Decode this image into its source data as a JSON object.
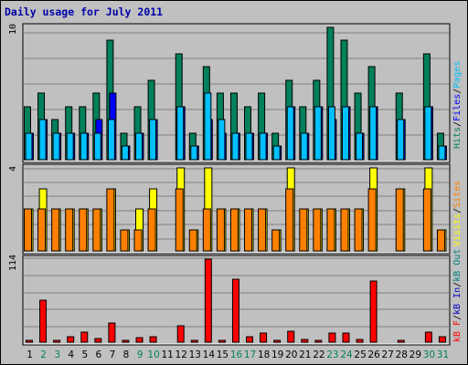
{
  "title": "Daily usage for July 2011",
  "colors": {
    "background": "#c0c0c0",
    "title": "#0000aa",
    "hits": "#00805b",
    "files": "#0000ff",
    "pages": "#00c0ff",
    "visits": "#ffff00",
    "sites": "#ff8000",
    "kb_in": "#008080",
    "kb_out": "#0000c0",
    "kb_f": "#ff0000"
  },
  "chart_data": [
    {
      "type": "bar",
      "title": "Daily usage for July 2011",
      "panel": "hits-files-pages",
      "ymax_label": "10",
      "ylim": [
        0,
        10
      ],
      "categories": [
        "1",
        "2",
        "3",
        "4",
        "5",
        "6",
        "7",
        "8",
        "9",
        "10",
        "11",
        "12",
        "13",
        "14",
        "15",
        "16",
        "17",
        "18",
        "19",
        "20",
        "21",
        "22",
        "23",
        "24",
        "25",
        "26",
        "27",
        "28",
        "29",
        "30",
        "31"
      ],
      "series": [
        {
          "name": "Hits",
          "values": [
            4,
            5,
            3,
            4,
            4,
            5,
            9,
            2,
            4,
            6,
            0,
            8,
            2,
            7,
            5,
            5,
            4,
            5,
            2,
            6,
            4,
            6,
            10,
            9,
            5,
            7,
            0,
            5,
            0,
            8,
            2
          ]
        },
        {
          "name": "Files",
          "values": [
            2,
            3,
            2,
            2,
            2,
            3,
            5,
            1,
            2,
            3,
            0,
            4,
            1,
            3,
            2,
            2,
            2,
            2,
            1,
            4,
            2,
            4,
            3,
            4,
            2,
            4,
            0,
            3,
            0,
            4,
            1
          ]
        },
        {
          "name": "Pages",
          "values": [
            2,
            3,
            2,
            2,
            2,
            2,
            3,
            1,
            2,
            3,
            0,
            4,
            1,
            5,
            3,
            2,
            2,
            2,
            1,
            4,
            2,
            4,
            4,
            4,
            2,
            4,
            0,
            3,
            0,
            4,
            1
          ]
        }
      ],
      "legend": [
        {
          "label": "Hits",
          "color": "#00805b"
        },
        {
          "label": "/",
          "color": "#000000"
        },
        {
          "label": "Files",
          "color": "#0000ff"
        },
        {
          "label": "/",
          "color": "#000000"
        },
        {
          "label": "Pages",
          "color": "#00c0ff"
        }
      ]
    },
    {
      "type": "bar",
      "panel": "visits-sites",
      "ymax_label": "4",
      "ylim": [
        0,
        4
      ],
      "categories": [
        "1",
        "2",
        "3",
        "4",
        "5",
        "6",
        "7",
        "8",
        "9",
        "10",
        "11",
        "12",
        "13",
        "14",
        "15",
        "16",
        "17",
        "18",
        "19",
        "20",
        "21",
        "22",
        "23",
        "24",
        "25",
        "26",
        "27",
        "28",
        "29",
        "30",
        "31"
      ],
      "series": [
        {
          "name": "Visits",
          "values": [
            2,
            3,
            2,
            2,
            2,
            2,
            3,
            1,
            2,
            3,
            0,
            4,
            1,
            4,
            2,
            2,
            2,
            2,
            1,
            4,
            2,
            2,
            2,
            2,
            2,
            4,
            0,
            3,
            0,
            4,
            1
          ]
        },
        {
          "name": "Sites",
          "values": [
            2,
            2,
            2,
            2,
            2,
            2,
            3,
            1,
            1,
            2,
            0,
            3,
            1,
            2,
            2,
            2,
            2,
            2,
            1,
            3,
            2,
            2,
            2,
            2,
            2,
            3,
            0,
            3,
            0,
            3,
            1
          ]
        }
      ],
      "legend": [
        {
          "label": "Visits",
          "color": "#ffff00"
        },
        {
          "label": "/",
          "color": "#000000"
        },
        {
          "label": "Sites",
          "color": "#ff8000"
        }
      ]
    },
    {
      "type": "bar",
      "panel": "kbytes",
      "ymax_label": "114",
      "ylim": [
        0,
        114
      ],
      "categories": [
        "1",
        "2",
        "3",
        "4",
        "5",
        "6",
        "7",
        "8",
        "9",
        "10",
        "11",
        "12",
        "13",
        "14",
        "15",
        "16",
        "17",
        "18",
        "19",
        "20",
        "21",
        "22",
        "23",
        "24",
        "25",
        "26",
        "27",
        "28",
        "29",
        "30",
        "31"
      ],
      "series": [
        {
          "name": "kB F",
          "values": [
            3,
            58,
            3,
            7,
            14,
            5,
            26,
            2,
            6,
            8,
            0,
            22,
            2,
            114,
            3,
            87,
            8,
            12,
            2,
            15,
            4,
            2,
            12,
            12,
            4,
            84,
            0,
            2,
            0,
            14,
            7
          ]
        }
      ],
      "legend": [
        {
          "label": "kB F",
          "color": "#ff0000"
        },
        {
          "label": "/",
          "color": "#000000"
        },
        {
          "label": "kB In",
          "color": "#0000c0"
        },
        {
          "label": "/",
          "color": "#000000"
        },
        {
          "label": "kB Out",
          "color": "#008080"
        }
      ]
    }
  ],
  "x_labels": [
    {
      "text": "1",
      "weekend": false
    },
    {
      "text": "2",
      "weekend": true
    },
    {
      "text": "3",
      "weekend": true
    },
    {
      "text": "4",
      "weekend": false
    },
    {
      "text": "5",
      "weekend": false
    },
    {
      "text": "6",
      "weekend": false
    },
    {
      "text": "7",
      "weekend": false
    },
    {
      "text": "8",
      "weekend": false
    },
    {
      "text": "9",
      "weekend": true
    },
    {
      "text": "10",
      "weekend": true
    },
    {
      "text": "11",
      "weekend": false
    },
    {
      "text": "12",
      "weekend": false
    },
    {
      "text": "13",
      "weekend": false
    },
    {
      "text": "14",
      "weekend": false
    },
    {
      "text": "15",
      "weekend": false
    },
    {
      "text": "16",
      "weekend": true
    },
    {
      "text": "17",
      "weekend": true
    },
    {
      "text": "18",
      "weekend": false
    },
    {
      "text": "19",
      "weekend": false
    },
    {
      "text": "20",
      "weekend": false
    },
    {
      "text": "21",
      "weekend": false
    },
    {
      "text": "22",
      "weekend": false
    },
    {
      "text": "23",
      "weekend": true
    },
    {
      "text": "24",
      "weekend": true
    },
    {
      "text": "25",
      "weekend": false
    },
    {
      "text": "26",
      "weekend": false
    },
    {
      "text": "27",
      "weekend": false
    },
    {
      "text": "28",
      "weekend": false
    },
    {
      "text": "29",
      "weekend": false
    },
    {
      "text": "30",
      "weekend": true
    },
    {
      "text": "31",
      "weekend": true
    }
  ],
  "weekend_color": "#00805b",
  "weekday_color": "#000000"
}
